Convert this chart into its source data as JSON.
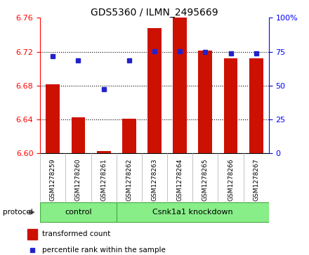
{
  "title": "GDS5360 / ILMN_2495669",
  "samples": [
    "GSM1278259",
    "GSM1278260",
    "GSM1278261",
    "GSM1278262",
    "GSM1278263",
    "GSM1278264",
    "GSM1278265",
    "GSM1278266",
    "GSM1278267"
  ],
  "transformed_count": [
    6.681,
    6.642,
    6.602,
    6.641,
    6.748,
    6.762,
    6.721,
    6.712,
    6.712
  ],
  "percentile_rank": [
    71.5,
    68.5,
    47.0,
    68.5,
    75.5,
    75.5,
    75.0,
    73.5,
    73.5
  ],
  "ylim_left": [
    6.6,
    6.76
  ],
  "ylim_right": [
    0,
    100
  ],
  "yticks_left": [
    6.6,
    6.64,
    6.68,
    6.72,
    6.76
  ],
  "yticks_right": [
    0,
    25,
    50,
    75,
    100
  ],
  "ytick_labels_right": [
    "0",
    "25",
    "50",
    "75",
    "100%"
  ],
  "bar_color": "#cc1100",
  "dot_color": "#2222cc",
  "bar_bottom": 6.6,
  "n_control": 3,
  "n_knockdown": 6,
  "control_label": "control",
  "knockdown_label": "Csnk1a1 knockdown",
  "protocol_label": "protocol",
  "legend_bar_label": "transformed count",
  "legend_dot_label": "percentile rank within the sample",
  "group_color": "#88ee88",
  "group_edge_color": "#44aa44",
  "bg_color": "#ffffff"
}
